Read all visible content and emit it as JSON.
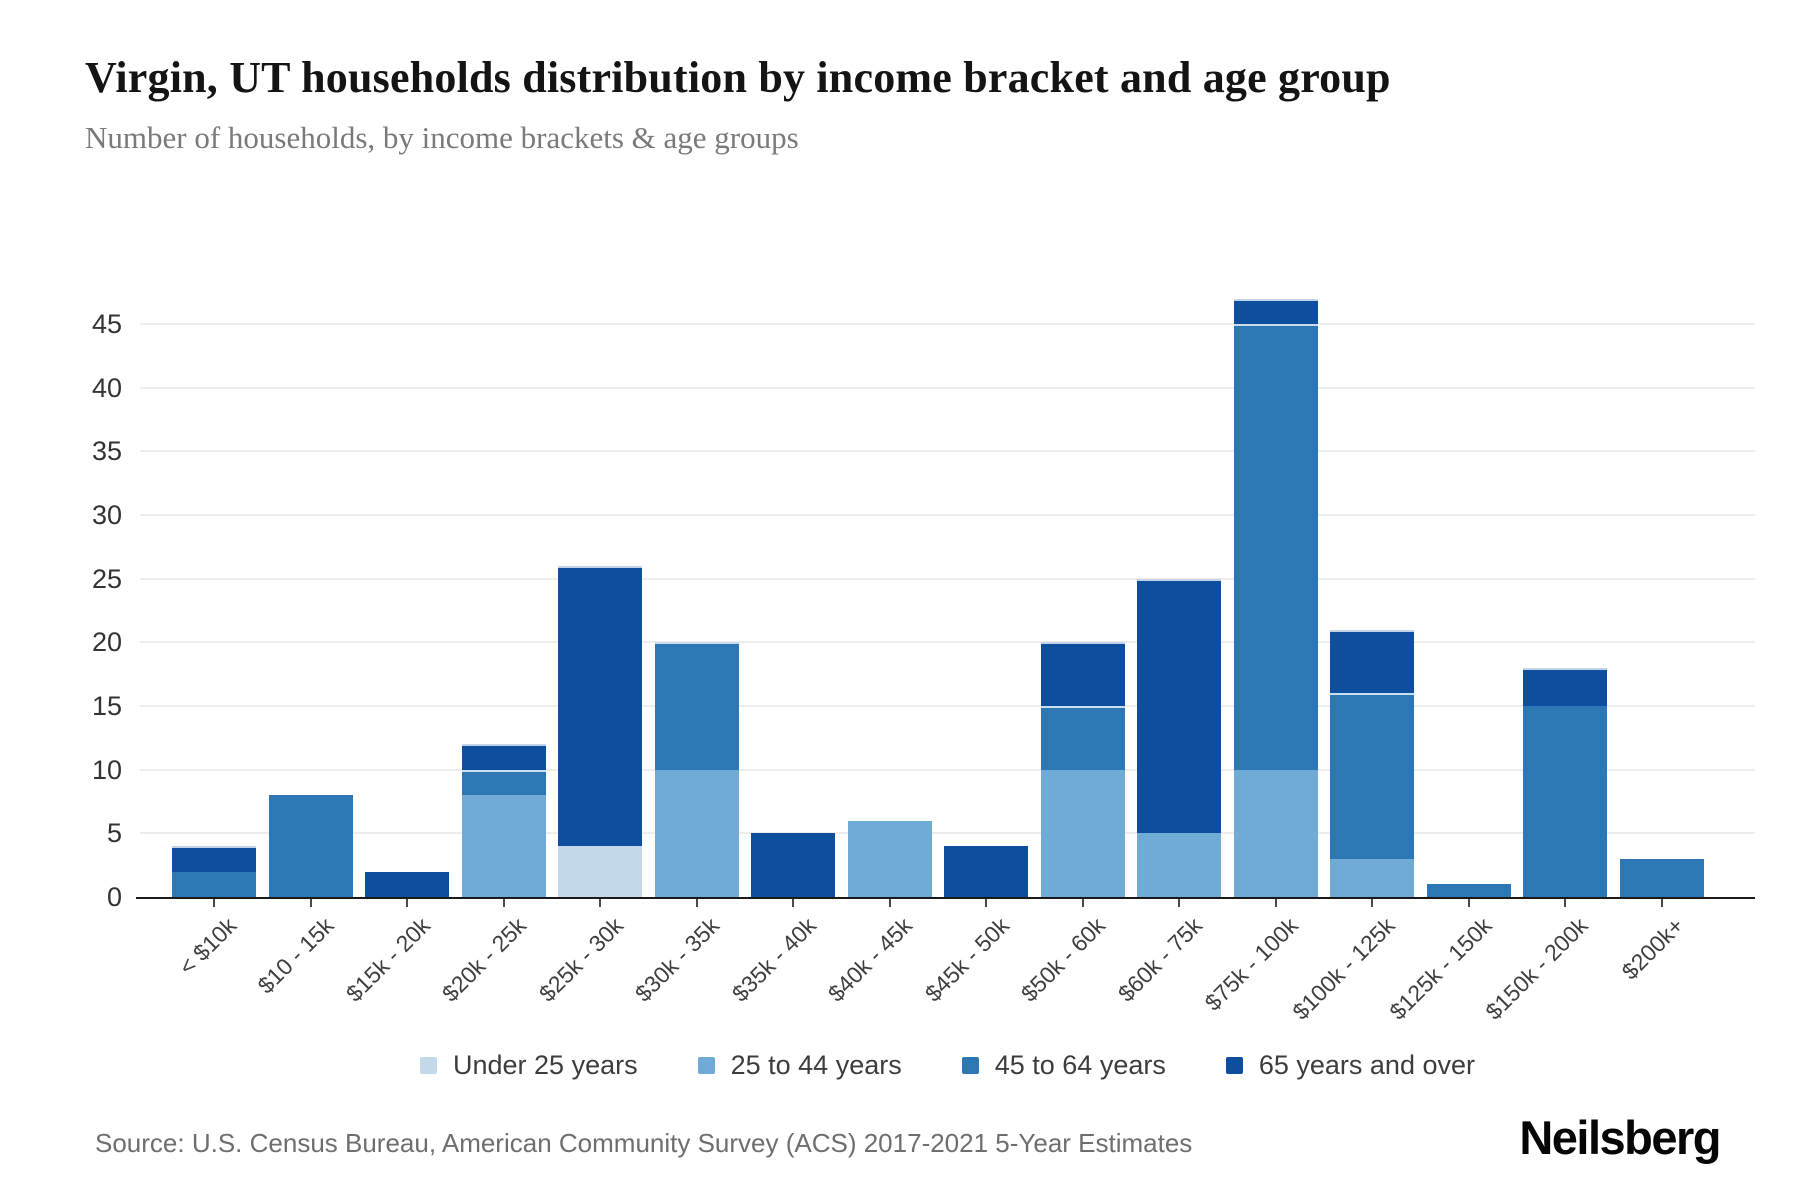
{
  "header": {
    "title": "Virgin, UT households distribution by income bracket and age group",
    "subtitle": "Number of households, by income brackets & age groups"
  },
  "chart_data": {
    "type": "bar",
    "stacked": true,
    "title": "Virgin, UT households distribution by income bracket and age group",
    "xlabel": "",
    "ylabel": "Number of households",
    "grid": true,
    "legend_position": "bottom",
    "ylim": [
      0,
      47
    ],
    "yticks": [
      0,
      5,
      10,
      15,
      20,
      25,
      30,
      35,
      40,
      45
    ],
    "categories": [
      "< $10k",
      "$10 - 15k",
      "$15k - 20k",
      "$20k - 25k",
      "$25k - 30k",
      "$30k - 35k",
      "$35k - 40k",
      "$40k - 45k",
      "$45k - 50k",
      "$50k - 60k",
      "$60k - 75k",
      "$75k - 100k",
      "$100k - 125k",
      "$125k - 150k",
      "$150k - 200k",
      "$200k+"
    ],
    "series": [
      {
        "name": "Under 25 years",
        "color": "#c3d9ea",
        "values": [
          0,
          0,
          0,
          0,
          4,
          0,
          0,
          0,
          0,
          0,
          0,
          0,
          0,
          0,
          0,
          0
        ]
      },
      {
        "name": "25 to 44 years",
        "color": "#6fabd4",
        "values": [
          0,
          0,
          0,
          8,
          0,
          10,
          0,
          6,
          0,
          10,
          5,
          10,
          3,
          0,
          0,
          0
        ]
      },
      {
        "name": "45 to 64 years",
        "color": "#2e77b5",
        "values": [
          2,
          8,
          0,
          2,
          0,
          10,
          0,
          0,
          0,
          5,
          0,
          35,
          13,
          1,
          15,
          3
        ]
      },
      {
        "name": "65 years and over",
        "color": "#0d4f9e",
        "values": [
          2,
          0,
          2,
          2,
          22,
          0,
          5,
          0,
          4,
          5,
          20,
          2,
          5,
          0,
          3,
          0
        ]
      }
    ],
    "totals": [
      4,
      8,
      2,
      12,
      26,
      20,
      5,
      6,
      4,
      20,
      25,
      47,
      21,
      1,
      18,
      3
    ]
  },
  "footer": {
    "source": "Source: U.S. Census Bureau, American Community Survey (ACS) 2017-2021 5-Year Estimates",
    "brand": "Neilsberg"
  }
}
